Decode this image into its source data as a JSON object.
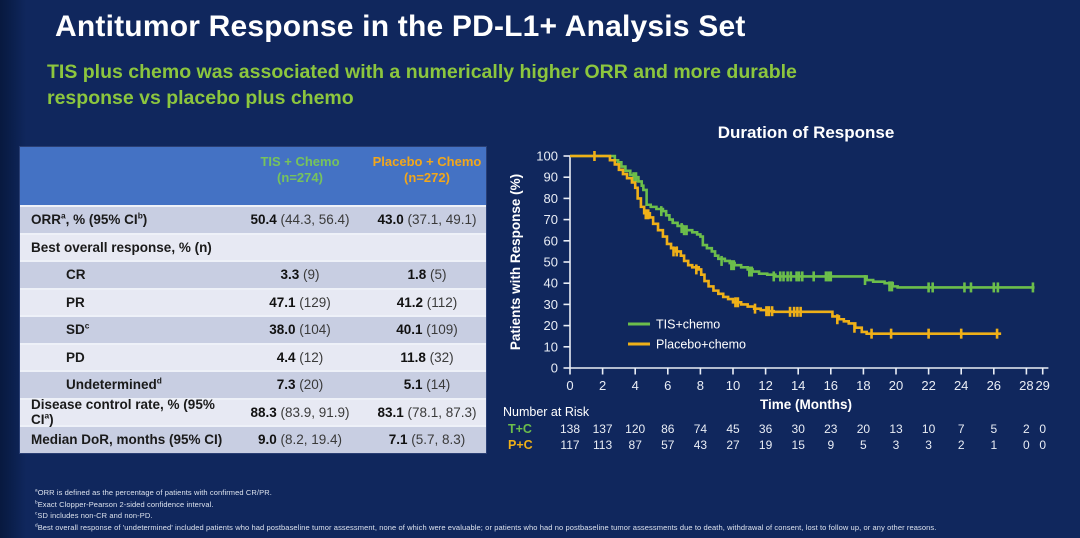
{
  "header": {
    "title": "Antitumor Response in the PD-L1+ Analysis Set",
    "subtitle": "TIS plus chemo was associated with a numerically higher ORR and more durable response vs placebo plus chemo"
  },
  "colors": {
    "background": "#10275d",
    "title_text": "#ffffff",
    "subtitle_green": "#8cc63e",
    "table_header_blue": "#4472c4",
    "tis_green": "#77c35c",
    "placebo_gold": "#f2a71b",
    "row_dark": "#c8cee2",
    "row_light": "#e7e9f3",
    "curve_green": "#6cbe4b",
    "curve_gold": "#efb018",
    "axis_text": "#e9edf5"
  },
  "table": {
    "columns": [
      {
        "label": "TIS + Chemo",
        "n": "(n=274)"
      },
      {
        "label": "Placebo + Chemo",
        "n": "(n=272)"
      }
    ],
    "rows": [
      {
        "label": "ORR^a^, % (95% CI^b^)",
        "indent": false,
        "tis": "**50.4** (44.3, 56.4)",
        "pbo": "**43.0** (37.1, 49.1)"
      },
      {
        "label": "Best overall response, % (n)",
        "indent": false,
        "tis": "",
        "pbo": ""
      },
      {
        "label": "CR",
        "indent": true,
        "tis": "**3.3** (9)",
        "pbo": "**1.8** (5)"
      },
      {
        "label": "PR",
        "indent": true,
        "tis": "**47.1** (129)",
        "pbo": "**41.2** (112)"
      },
      {
        "label": "SD^c^",
        "indent": true,
        "tis": "**38.0** (104)",
        "pbo": "**40.1** (109)"
      },
      {
        "label": "PD",
        "indent": true,
        "tis": "**4.4** (12)",
        "pbo": "**11.8** (32)"
      },
      {
        "label": "Undetermined^d^",
        "indent": true,
        "tis": "**7.3** (20)",
        "pbo": "**5.1** (14)"
      },
      {
        "label": "Disease control rate, % (95% CI^a^)",
        "indent": false,
        "tis": "**88.3** (83.9, 91.9)",
        "pbo": "**83.1** (78.1, 87.3)"
      },
      {
        "label": "Median DoR, months (95% CI)",
        "indent": false,
        "tis": "**9.0** (8.2, 19.4)",
        "pbo": "**7.1** (5.7, 8.3)"
      }
    ]
  },
  "chart_data": {
    "type": "km_step",
    "title": "Duration of Response",
    "xlabel": "Time (Months)",
    "ylabel": "Patients with Response (%)",
    "xlim": [
      0,
      29.5
    ],
    "ylim": [
      0,
      100
    ],
    "xticks": [
      0,
      2,
      4,
      6,
      8,
      10,
      12,
      14,
      16,
      18,
      20,
      22,
      24,
      26,
      28,
      29
    ],
    "yticks": [
      0,
      10,
      20,
      30,
      40,
      50,
      60,
      70,
      80,
      90,
      100
    ],
    "legend_position": "lower-left-inside",
    "series": [
      {
        "name": "TIS+chemo",
        "color": "#6cbe4b",
        "steps": [
          [
            0,
            100
          ],
          [
            2.6,
            100
          ],
          [
            2.75,
            98
          ],
          [
            2.95,
            97
          ],
          [
            3.15,
            95
          ],
          [
            3.4,
            93
          ],
          [
            3.7,
            91
          ],
          [
            4.0,
            90
          ],
          [
            4.2,
            88
          ],
          [
            4.4,
            86
          ],
          [
            4.5,
            84
          ],
          [
            4.7,
            77
          ],
          [
            4.95,
            76
          ],
          [
            5.3,
            75
          ],
          [
            5.7,
            74
          ],
          [
            5.9,
            72
          ],
          [
            6.1,
            70
          ],
          [
            6.3,
            68.5
          ],
          [
            6.6,
            67
          ],
          [
            6.9,
            66
          ],
          [
            7.1,
            65
          ],
          [
            7.5,
            64
          ],
          [
            7.8,
            63
          ],
          [
            8.0,
            62
          ],
          [
            8.15,
            58
          ],
          [
            8.4,
            56.5
          ],
          [
            8.7,
            55
          ],
          [
            8.9,
            53
          ],
          [
            9.1,
            51.5
          ],
          [
            9.5,
            50.5
          ],
          [
            9.8,
            49.5
          ],
          [
            10.1,
            48.5
          ],
          [
            10.5,
            47.5
          ],
          [
            10.9,
            46.5
          ],
          [
            11.2,
            45.5
          ],
          [
            11.6,
            44.5
          ],
          [
            12.1,
            44
          ],
          [
            12.6,
            43.2
          ],
          [
            18.0,
            43.2
          ],
          [
            18.2,
            41.5
          ],
          [
            18.6,
            40.7
          ],
          [
            19.3,
            40
          ],
          [
            19.8,
            38.5
          ],
          [
            20.1,
            38
          ],
          [
            28.5,
            38
          ]
        ],
        "censors": [
          [
            3.9,
            90
          ],
          [
            4.05,
            90
          ],
          [
            5.6,
            74
          ],
          [
            6.85,
            66
          ],
          [
            7.0,
            65
          ],
          [
            7.15,
            65
          ],
          [
            9.3,
            50.5
          ],
          [
            9.9,
            48.5
          ],
          [
            10.05,
            48.5
          ],
          [
            11.0,
            45.5
          ],
          [
            11.15,
            45.5
          ],
          [
            12.5,
            43.2
          ],
          [
            12.9,
            43.2
          ],
          [
            13.1,
            43.2
          ],
          [
            13.35,
            43.2
          ],
          [
            13.55,
            43.2
          ],
          [
            13.9,
            43.2
          ],
          [
            14.05,
            43.2
          ],
          [
            14.25,
            43.2
          ],
          [
            14.95,
            43.2
          ],
          [
            15.7,
            43.2
          ],
          [
            15.85,
            43.2
          ],
          [
            16.0,
            43.2
          ],
          [
            18.1,
            41.5
          ],
          [
            19.6,
            38.5
          ],
          [
            19.75,
            38.5
          ],
          [
            22.0,
            38
          ],
          [
            22.25,
            38
          ],
          [
            24.2,
            38
          ],
          [
            24.6,
            38
          ],
          [
            26.0,
            38
          ],
          [
            26.25,
            38
          ],
          [
            28.4,
            38
          ]
        ]
      },
      {
        "name": "Placebo+chemo",
        "color": "#efb018",
        "steps": [
          [
            0,
            100
          ],
          [
            2.3,
            100
          ],
          [
            2.45,
            98
          ],
          [
            2.75,
            96
          ],
          [
            3.0,
            93.5
          ],
          [
            3.25,
            91.5
          ],
          [
            3.5,
            89.5
          ],
          [
            3.8,
            87.5
          ],
          [
            4.0,
            85
          ],
          [
            4.15,
            80
          ],
          [
            4.35,
            76
          ],
          [
            4.55,
            73
          ],
          [
            4.9,
            71
          ],
          [
            5.1,
            68
          ],
          [
            5.4,
            65
          ],
          [
            5.7,
            62
          ],
          [
            5.95,
            58.5
          ],
          [
            6.2,
            56.5
          ],
          [
            6.5,
            55
          ],
          [
            6.8,
            53
          ],
          [
            7.0,
            50.5
          ],
          [
            7.25,
            48.5
          ],
          [
            7.5,
            47.5
          ],
          [
            7.9,
            46.5
          ],
          [
            8.05,
            44
          ],
          [
            8.25,
            41
          ],
          [
            8.5,
            38.5
          ],
          [
            8.8,
            36.5
          ],
          [
            9.1,
            35
          ],
          [
            9.4,
            33.5
          ],
          [
            9.7,
            32.5
          ],
          [
            10.0,
            31
          ],
          [
            10.5,
            30
          ],
          [
            10.9,
            29
          ],
          [
            11.3,
            28
          ],
          [
            11.7,
            27.3
          ],
          [
            12.1,
            26.8
          ],
          [
            12.5,
            26.5
          ],
          [
            15.9,
            26.5
          ],
          [
            16.1,
            24.3
          ],
          [
            16.5,
            23
          ],
          [
            16.8,
            22
          ],
          [
            17.1,
            21
          ],
          [
            17.5,
            19
          ],
          [
            17.9,
            17
          ],
          [
            18.2,
            16.2
          ],
          [
            26.45,
            16.2
          ]
        ],
        "censors": [
          [
            1.5,
            100
          ],
          [
            4.65,
            72.5
          ],
          [
            4.8,
            72.5
          ],
          [
            6.35,
            55
          ],
          [
            6.55,
            55
          ],
          [
            7.75,
            46.5
          ],
          [
            10.15,
            31
          ],
          [
            10.3,
            31
          ],
          [
            11.35,
            28
          ],
          [
            12.05,
            26.8
          ],
          [
            12.2,
            26.8
          ],
          [
            12.4,
            26.8
          ],
          [
            13.5,
            26.5
          ],
          [
            13.75,
            26.5
          ],
          [
            13.95,
            26.5
          ],
          [
            14.15,
            26.5
          ],
          [
            16.4,
            23
          ],
          [
            17.45,
            19
          ],
          [
            18.5,
            16.2
          ],
          [
            19.7,
            16.2
          ],
          [
            22.0,
            16.2
          ],
          [
            24.0,
            16.2
          ],
          [
            26.2,
            16.2
          ]
        ]
      }
    ],
    "number_at_risk": {
      "label": "Number at Risk",
      "times": [
        0,
        2,
        4,
        6,
        8,
        10,
        12,
        14,
        16,
        18,
        20,
        22,
        24,
        26,
        28,
        29
      ],
      "rows": [
        {
          "name": "T+C",
          "color": "#6cbe4b",
          "values": [
            138,
            137,
            120,
            86,
            74,
            45,
            36,
            30,
            23,
            20,
            13,
            10,
            7,
            5,
            2,
            0
          ]
        },
        {
          "name": "P+C",
          "color": "#efb018",
          "values": [
            117,
            113,
            87,
            57,
            43,
            27,
            19,
            15,
            9,
            5,
            3,
            3,
            2,
            1,
            0,
            0
          ]
        }
      ]
    }
  },
  "footnotes": [
    "^a^ORR is defined as the percentage of patients with confirmed CR/PR.",
    "^b^Exact Clopper-Pearson 2-sided confidence interval.",
    "^c^SD includes non-CR and non-PD.",
    "^d^Best overall response of 'undetermined' included patients who had postbaseline tumor assessment, none of which were evaluable; or patients who had no postbaseline tumor assessments due to death, withdrawal of consent, lost to follow up, or any other reasons."
  ]
}
